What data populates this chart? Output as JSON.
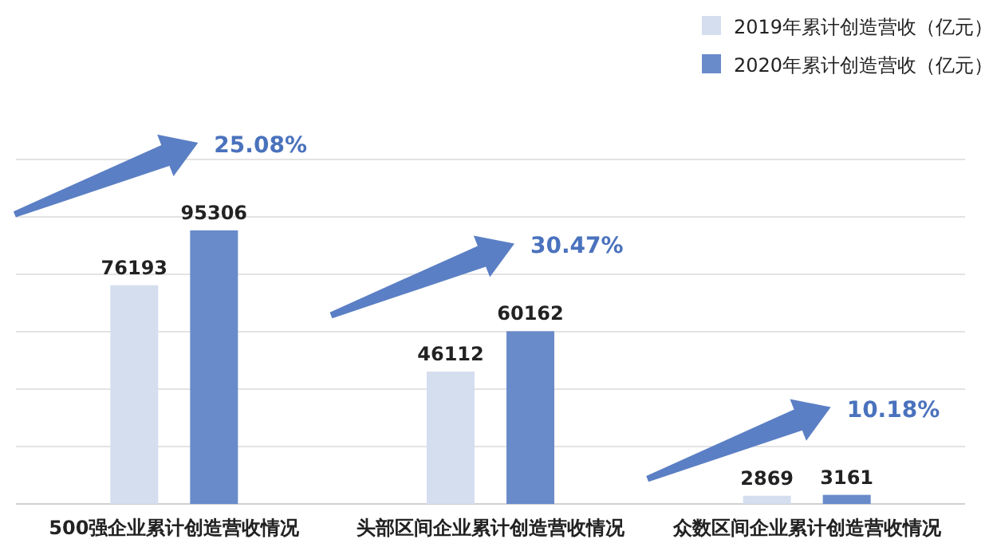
{
  "chart_data": {
    "type": "bar",
    "categories": [
      "500强企业累计创造营收情况",
      "头部区间企业累计创造营收情况",
      "众数区间企业累计创造营收情况"
    ],
    "series": [
      {
        "name": "2019年累计创造营收（亿元）",
        "color": "#d5deef",
        "values": [
          76193,
          46112,
          2869
        ]
      },
      {
        "name": "2020年累计创造营收（亿元）",
        "color": "#6a8bca",
        "values": [
          95306,
          60162,
          3161
        ]
      }
    ],
    "data_labels": true,
    "annotations": [
      "25.08%",
      "30.47%",
      "10.18%"
    ],
    "ylim": [
      0,
      120000
    ],
    "yticks": [
      {
        "value": 0,
        "label": null
      },
      {
        "value": 20000,
        "label": null
      },
      {
        "value": 40000,
        "label": null
      },
      {
        "value": 60000,
        "label": null
      },
      {
        "value": 80000,
        "label": null
      },
      {
        "value": 100000,
        "label": null
      },
      {
        "value": 120000,
        "label": null
      }
    ],
    "tick_labels": "x",
    "grid": "y",
    "legend": "top right"
  }
}
